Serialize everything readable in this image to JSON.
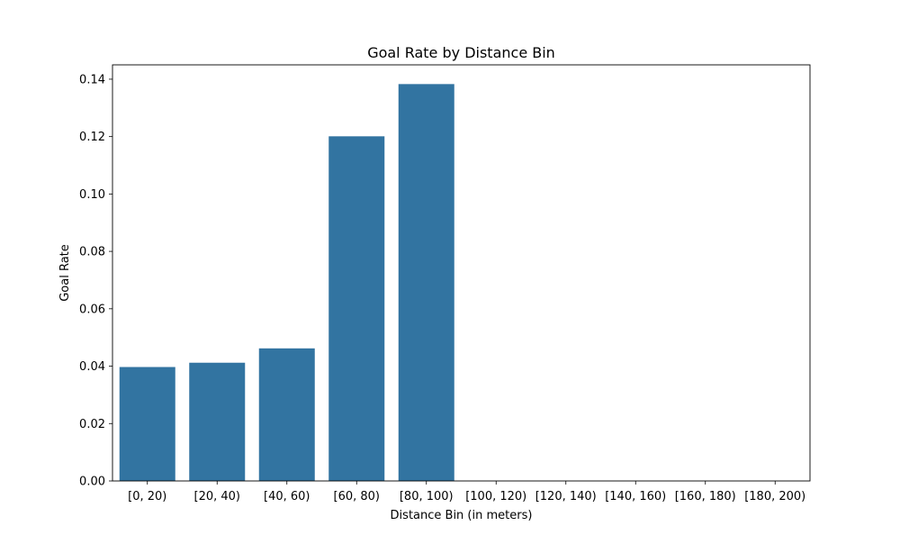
{
  "chart_data": {
    "type": "bar",
    "title": "Goal Rate by Distance Bin",
    "xlabel": "Distance Bin (in meters)",
    "ylabel": "Goal Rate",
    "categories": [
      "[0, 20)",
      "[20, 40)",
      "[40, 60)",
      "[60, 80)",
      "[80, 100)",
      "[100, 120)",
      "[120, 140)",
      "[140, 160)",
      "[160, 180)",
      "[180, 200)"
    ],
    "values": [
      0.0397,
      0.0412,
      0.0462,
      0.1201,
      0.1383,
      0,
      0,
      0,
      0,
      0
    ],
    "ylim": [
      0,
      0.145
    ],
    "yticks": [
      "0.00",
      "0.02",
      "0.04",
      "0.06",
      "0.08",
      "0.10",
      "0.12",
      "0.14"
    ],
    "grid": false,
    "bar_color": "#3274a1"
  }
}
